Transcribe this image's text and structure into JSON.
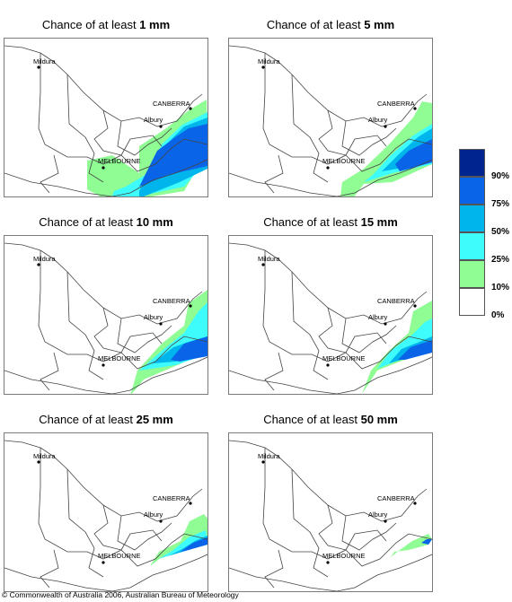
{
  "panels": [
    {
      "title_prefix": "Chance of at least ",
      "amount": "1 mm"
    },
    {
      "title_prefix": "Chance of at least ",
      "amount": "5 mm"
    },
    {
      "title_prefix": "Chance of at least ",
      "amount": "10 mm"
    },
    {
      "title_prefix": "Chance of at least ",
      "amount": "15 mm"
    },
    {
      "title_prefix": "Chance of at least ",
      "amount": "25 mm"
    },
    {
      "title_prefix": "Chance of at least ",
      "amount": "50 mm"
    }
  ],
  "map_labels": {
    "mildura": "Mildura",
    "canberra": "CANBERRA",
    "albury": "Albury",
    "melbourne": "MELBOURNE"
  },
  "legend": {
    "classes": [
      {
        "label": "90%",
        "color": "#00248f"
      },
      {
        "label": "75%",
        "color": "#0a64e8"
      },
      {
        "label": "50%",
        "color": "#00b4ec"
      },
      {
        "label": "25%",
        "color": "#3ffcfc"
      },
      {
        "label": "10%",
        "color": "#8ffc94"
      },
      {
        "label": "0%",
        "color": "#ffffff"
      }
    ]
  },
  "copyright": "© Commonwealth of Australia 2006, Australian Bureau of Meteorology"
}
